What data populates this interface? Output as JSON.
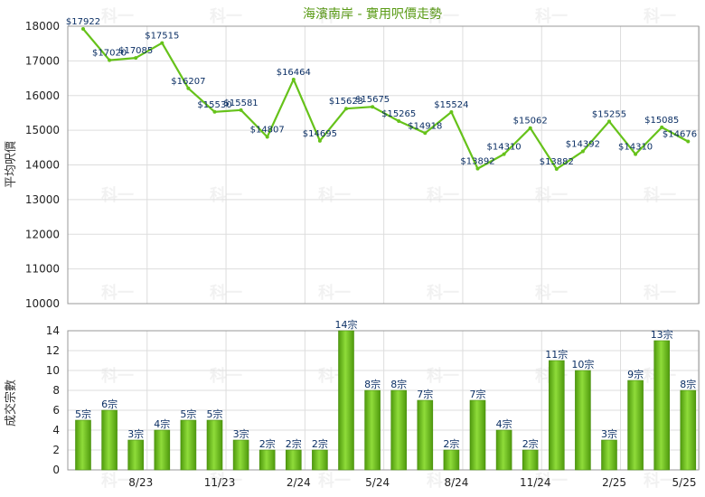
{
  "chart_data": [
    {
      "type": "line",
      "title": "海濱南岸 - 實用呎價走勢",
      "ylabel": "平均呎價",
      "ylim": [
        10000,
        18000
      ],
      "yticks": [
        "10000",
        "11000",
        "12000",
        "13000",
        "14000",
        "15000",
        "16000",
        "17000",
        "18000"
      ],
      "grid": true,
      "series": [
        {
          "values": [
            17922,
            17020,
            17085,
            17515,
            16207,
            15530,
            15581,
            14807,
            16464,
            14695,
            15623,
            15675,
            15265,
            14918,
            15524,
            13892,
            14310,
            15062,
            13882,
            14392,
            15255,
            14310,
            15085,
            14676
          ],
          "labels": [
            "$17922",
            "$17020",
            "$17085",
            "$17515",
            "$16207",
            "$15530",
            "$15581",
            "$14807",
            "$16464",
            "$14695",
            "$15623",
            "$15675",
            "$15265",
            "$14918",
            "$15524",
            "$13892",
            "$14310",
            "$15062",
            "$13882",
            "$14392",
            "$15255",
            "$14310",
            "$15085",
            "$14676"
          ],
          "color": "#66c21a"
        }
      ]
    },
    {
      "type": "bar",
      "ylabel": "成交宗數",
      "ylim": [
        0,
        14
      ],
      "yticks": [
        "0",
        "2",
        "4",
        "6",
        "8",
        "10",
        "12",
        "14"
      ],
      "xticks": [
        "8/23",
        "11/23",
        "2/24",
        "5/24",
        "8/24",
        "11/24",
        "2/25",
        "5/25"
      ],
      "grid": true,
      "series": [
        {
          "values": [
            5,
            6,
            3,
            4,
            5,
            5,
            3,
            2,
            2,
            2,
            14,
            8,
            8,
            7,
            2,
            7,
            4,
            2,
            11,
            10,
            3,
            9,
            13,
            8
          ],
          "labels": [
            "5宗",
            "6宗",
            "3宗",
            "4宗",
            "5宗",
            "5宗",
            "3宗",
            "2宗",
            "2宗",
            "2宗",
            "14宗",
            "8宗",
            "8宗",
            "7宗",
            "2宗",
            "7宗",
            "4宗",
            "2宗",
            "11宗",
            "10宗",
            "3宗",
            "9宗",
            "13宗",
            "8宗"
          ],
          "color": "#6cc21c"
        }
      ]
    }
  ],
  "watermark": "科一"
}
